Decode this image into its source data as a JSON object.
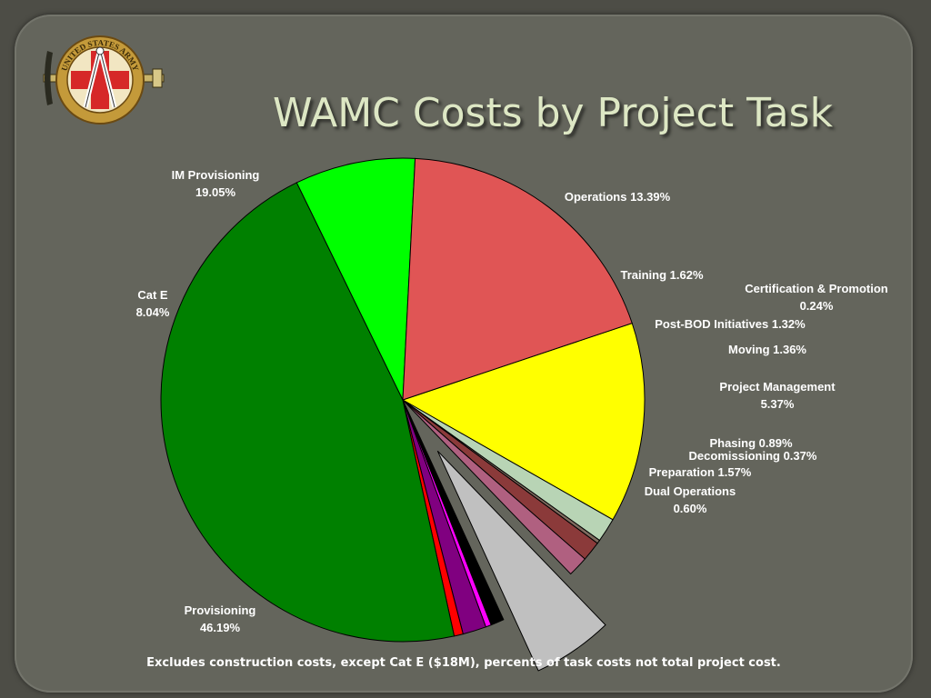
{
  "slide": {
    "title": "WAMC Costs by Project Task",
    "footnote": "Excludes construction costs, except Cat E ($18M), percents of task costs not total project cost.",
    "logo": {
      "name": "army-health-facility-planning-agency-logo",
      "ring_text": "UNITED STATES ARMY"
    }
  },
  "chart_data": {
    "type": "pie",
    "title": "",
    "slices": [
      {
        "name": "Operations",
        "value": 13.39,
        "color": "#ffff00",
        "label": [
          "Operations 13.39%"
        ]
      },
      {
        "name": "Training",
        "value": 1.62,
        "color": "#b8d4b5",
        "label": [
          "Training 1.62%"
        ]
      },
      {
        "name": "Certification & Promotion",
        "value": 0.24,
        "color": "#7f6a5e",
        "label": [
          "Certification & Promotion",
          "0.24%"
        ]
      },
      {
        "name": "Post-BOD Initiatives",
        "value": 1.32,
        "color": "#8b3a3a",
        "label": [
          "Post-BOD Initiatives 1.32%"
        ]
      },
      {
        "name": "Moving",
        "value": 1.36,
        "color": "#b06080",
        "label": [
          "Moving 1.36%"
        ]
      },
      {
        "name": "Project Management",
        "value": 5.37,
        "color": "#c0c0c0",
        "label": [
          "Project Management",
          "5.37%"
        ],
        "exploded": true
      },
      {
        "name": "Phasing",
        "value": 0.89,
        "color": "#000000",
        "label": [
          "Phasing 0.89%"
        ]
      },
      {
        "name": "Decomissioning",
        "value": 0.37,
        "color": "#ff00ff",
        "label": [
          "Decomissioning 0.37%"
        ]
      },
      {
        "name": "Preparation",
        "value": 1.57,
        "color": "#800080",
        "label": [
          "Preparation 1.57%"
        ]
      },
      {
        "name": "Dual Operations",
        "value": 0.6,
        "color": "#ff0000",
        "label": [
          "Dual Operations",
          "0.60%"
        ]
      },
      {
        "name": "Provisioning",
        "value": 46.19,
        "color": "#008000",
        "label": [
          "Provisioning",
          "46.19%"
        ]
      },
      {
        "name": "Cat E",
        "value": 8.04,
        "color": "#00ff00",
        "label": [
          "Cat E",
          "8.04%"
        ]
      },
      {
        "name": "IM Provisioning",
        "value": 19.05,
        "color": "#e05555",
        "label": [
          "IM Provisioning",
          "19.05%"
        ]
      }
    ]
  }
}
